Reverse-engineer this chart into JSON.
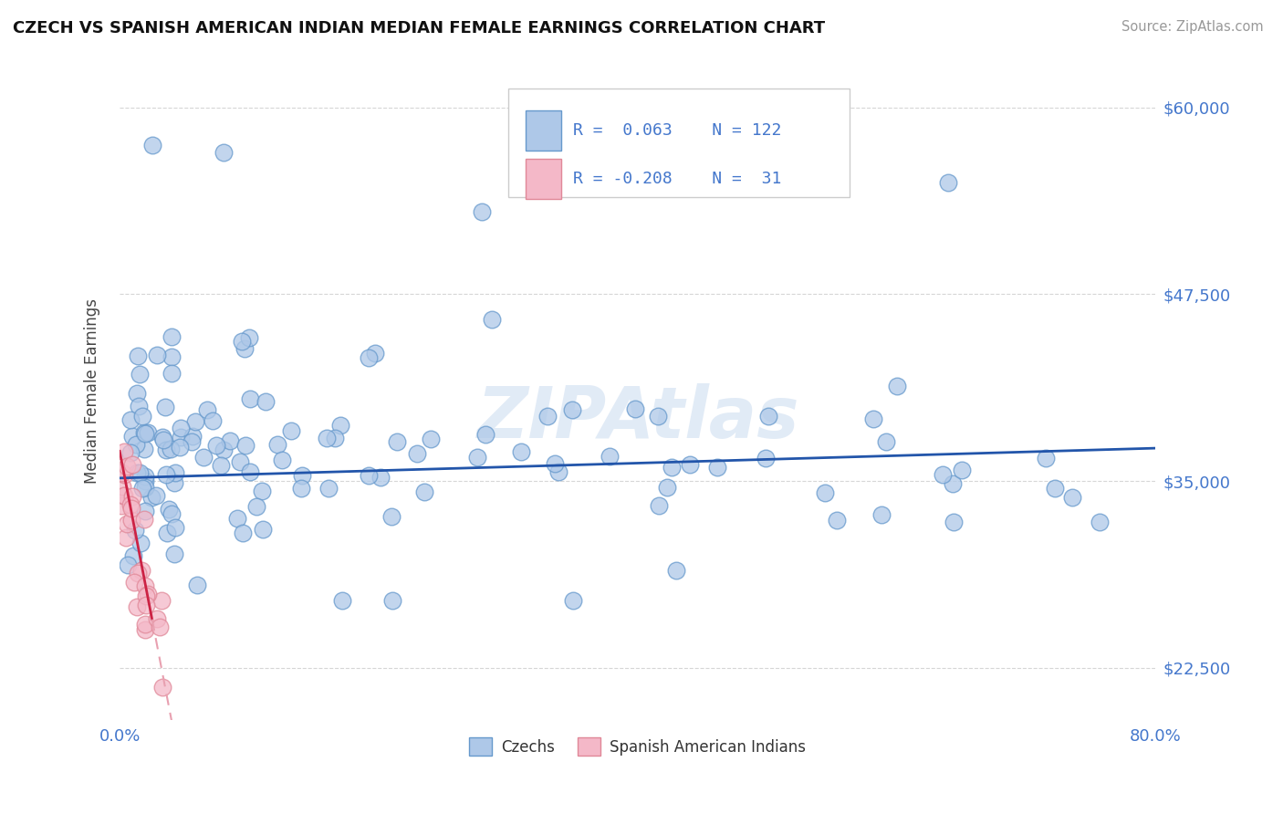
{
  "title": "CZECH VS SPANISH AMERICAN INDIAN MEDIAN FEMALE EARNINGS CORRELATION CHART",
  "source_text": "Source: ZipAtlas.com",
  "ylabel": "Median Female Earnings",
  "xlim": [
    0.0,
    0.8
  ],
  "ylim": [
    19000,
    63000
  ],
  "yticks": [
    22500,
    35000,
    47500,
    60000
  ],
  "ytick_labels": [
    "$22,500",
    "$35,000",
    "$47,500",
    "$60,000"
  ],
  "xticks": [
    0.0,
    0.8
  ],
  "xtick_labels": [
    "0.0%",
    "80.0%"
  ],
  "czech_color": "#aec8e8",
  "czech_edge_color": "#6699cc",
  "spanish_color": "#f4b8c8",
  "spanish_edge_color": "#e08898",
  "czech_R": 0.063,
  "czech_N": 122,
  "spanish_R": -0.208,
  "spanish_N": 31,
  "watermark": "ZIPAtlas",
  "legend_czechs": "Czechs",
  "legend_spanish": "Spanish American Indians",
  "background_color": "#ffffff",
  "grid_color": "#cccccc",
  "czech_trend_color": "#2255aa",
  "spanish_trend_solid_color": "#cc2244",
  "spanish_trend_dash_color": "#e8a0b0"
}
